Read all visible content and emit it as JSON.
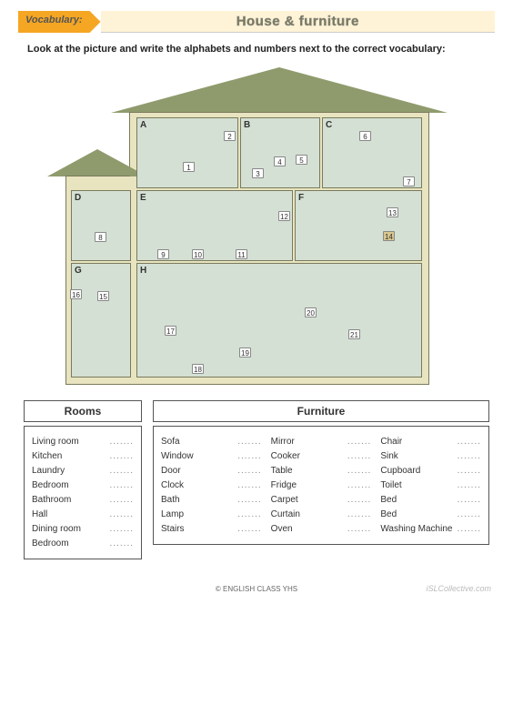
{
  "header": {
    "tag": "Vocabulary:",
    "title": "House & furniture"
  },
  "instruction": "Look at the picture and write the alphabets and numbers next to the correct vocabulary:",
  "house": {
    "rooms": [
      {
        "id": "A",
        "class": "rA"
      },
      {
        "id": "B",
        "class": "rB"
      },
      {
        "id": "C",
        "class": "rC"
      },
      {
        "id": "D",
        "class": "rD"
      },
      {
        "id": "E",
        "class": "rE"
      },
      {
        "id": "F",
        "class": "rF"
      },
      {
        "id": "G",
        "class": "rG"
      },
      {
        "id": "H",
        "class": "rH"
      }
    ],
    "numbers": {
      "1": "n1",
      "2": "n2",
      "3": "n3",
      "4": "n4",
      "5": "n5",
      "6": "n6",
      "7": "n7",
      "8": "n8",
      "9": "n9",
      "10": "n10",
      "11": "n11",
      "12": "n12",
      "13": "n13",
      "14": "n14",
      "15": "n15",
      "16": "n16",
      "17": "n17",
      "18": "n18",
      "19": "n19",
      "20": "n20",
      "21": "n21"
    }
  },
  "sections": {
    "rooms": {
      "title": "Rooms",
      "items": [
        "Living room",
        "Kitchen",
        "Laundry",
        "Bedroom",
        "Bathroom",
        "Hall",
        "Dining room",
        "Bedroom"
      ]
    },
    "furniture": {
      "title": "Furniture",
      "col1": [
        "Sofa",
        "Window",
        "Door",
        "Clock",
        "Bath",
        "Lamp",
        "Stairs"
      ],
      "col2": [
        "Mirror",
        "Cooker",
        "Table",
        "Fridge",
        "Carpet",
        "Curtain",
        "Oven"
      ],
      "col3": [
        "Chair",
        "Sink",
        "Cupboard",
        "Toilet",
        "Bed",
        "Bed",
        "Washing Machine"
      ]
    }
  },
  "footer": "© ENGLISH CLASS YHS",
  "watermark": "iSLCollective.com",
  "blank": ".......",
  "colors": {
    "accent": "#f5a623",
    "titlebg": "#fef3d6",
    "roof": "#8f9b6d",
    "wall": "#e8e4c0",
    "room": "#d4e0d4",
    "border": "#7a7a5c"
  }
}
